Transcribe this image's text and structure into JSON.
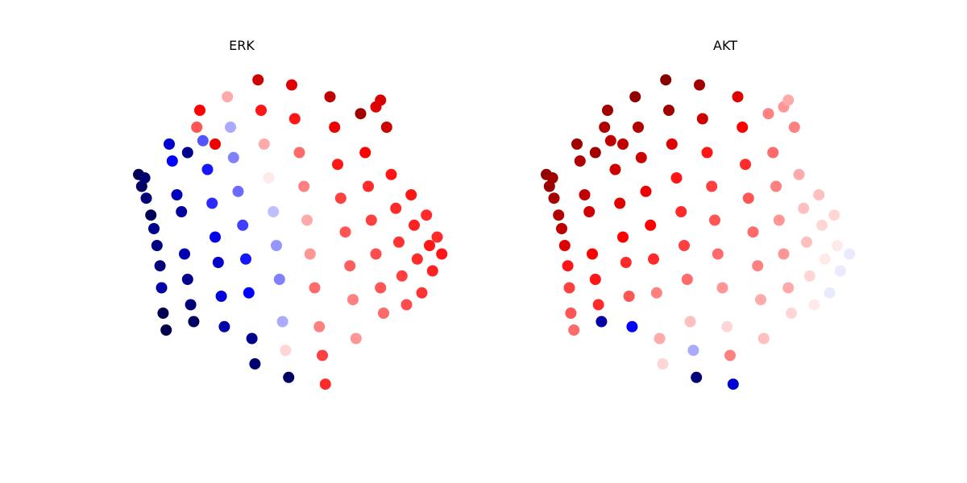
{
  "chart_data": [
    {
      "type": "scatter",
      "title": "ERK",
      "xlabel": "",
      "ylabel": "",
      "axes_visible": false,
      "grid": false,
      "colormap": "seismic",
      "value_range": [
        -1,
        1
      ],
      "colors": {
        "low": "#00004c",
        "mid": "#ffffff",
        "high": "#800000"
      },
      "points": [
        [
          -1.0,
          0.42,
          -0.98
        ],
        [
          -0.98,
          0.35,
          -0.95
        ],
        [
          -0.96,
          0.4,
          -0.92
        ],
        [
          -0.95,
          0.28,
          -0.9
        ],
        [
          -0.92,
          0.18,
          -0.97
        ],
        [
          -0.9,
          0.1,
          -0.85
        ],
        [
          -0.88,
          0.0,
          -0.88
        ],
        [
          -0.86,
          -0.12,
          -0.9
        ],
        [
          -0.85,
          -0.25,
          -0.8
        ],
        [
          -0.84,
          -0.4,
          -0.99
        ],
        [
          -0.82,
          -0.5,
          -1.0
        ],
        [
          -0.8,
          0.6,
          -0.7
        ],
        [
          -0.78,
          0.5,
          -0.6
        ],
        [
          -0.75,
          0.3,
          -0.75
        ],
        [
          -0.72,
          0.2,
          -0.82
        ],
        [
          -0.7,
          -0.05,
          -0.78
        ],
        [
          -0.68,
          -0.2,
          -0.86
        ],
        [
          -0.66,
          -0.35,
          -0.9
        ],
        [
          -0.64,
          -0.45,
          -0.95
        ],
        [
          -0.62,
          0.7,
          0.4
        ],
        [
          -0.6,
          0.8,
          0.6
        ],
        [
          -0.58,
          0.62,
          -0.4
        ],
        [
          -0.55,
          0.45,
          -0.55
        ],
        [
          -0.52,
          0.25,
          -0.5
        ],
        [
          -0.5,
          0.05,
          -0.65
        ],
        [
          -0.48,
          -0.1,
          -0.72
        ],
        [
          -0.46,
          -0.3,
          -0.68
        ],
        [
          -0.44,
          -0.48,
          -0.8
        ],
        [
          -0.42,
          0.88,
          0.2
        ],
        [
          -0.4,
          0.7,
          -0.2
        ],
        [
          -0.38,
          0.52,
          -0.3
        ],
        [
          -0.35,
          0.32,
          -0.35
        ],
        [
          -0.32,
          0.12,
          -0.45
        ],
        [
          -0.3,
          -0.08,
          -0.55
        ],
        [
          -0.28,
          -0.28,
          -0.6
        ],
        [
          -0.26,
          -0.55,
          -0.85
        ],
        [
          -0.24,
          -0.7,
          -0.92
        ],
        [
          -0.22,
          0.98,
          0.75
        ],
        [
          -0.2,
          0.8,
          0.55
        ],
        [
          -0.18,
          0.6,
          0.2
        ],
        [
          -0.15,
          0.4,
          0.05
        ],
        [
          -0.12,
          0.2,
          -0.15
        ],
        [
          -0.1,
          0.0,
          -0.25
        ],
        [
          -0.08,
          -0.2,
          -0.3
        ],
        [
          -0.06,
          -0.45,
          -0.2
        ],
        [
          -0.04,
          -0.62,
          0.1
        ],
        [
          -0.02,
          -0.78,
          -0.95
        ],
        [
          0.0,
          0.95,
          0.7
        ],
        [
          0.02,
          0.75,
          0.55
        ],
        [
          0.05,
          0.55,
          0.35
        ],
        [
          0.08,
          0.35,
          0.3
        ],
        [
          0.1,
          0.15,
          0.2
        ],
        [
          0.12,
          -0.05,
          0.25
        ],
        [
          0.15,
          -0.25,
          0.35
        ],
        [
          0.18,
          -0.48,
          0.3
        ],
        [
          0.2,
          -0.65,
          0.45
        ],
        [
          0.22,
          -0.82,
          0.5
        ],
        [
          0.25,
          0.88,
          0.8
        ],
        [
          0.28,
          0.7,
          0.65
        ],
        [
          0.3,
          0.48,
          0.55
        ],
        [
          0.32,
          0.28,
          0.45
        ],
        [
          0.35,
          0.08,
          0.4
        ],
        [
          0.38,
          -0.12,
          0.38
        ],
        [
          0.4,
          -0.32,
          0.3
        ],
        [
          0.42,
          -0.55,
          0.25
        ],
        [
          0.45,
          0.78,
          0.9
        ],
        [
          0.48,
          0.55,
          0.6
        ],
        [
          0.5,
          0.35,
          0.5
        ],
        [
          0.52,
          0.15,
          0.45
        ],
        [
          0.55,
          -0.05,
          0.42
        ],
        [
          0.58,
          -0.25,
          0.4
        ],
        [
          0.6,
          -0.4,
          0.35
        ],
        [
          0.62,
          0.7,
          0.75
        ],
        [
          0.65,
          0.42,
          0.55
        ],
        [
          0.68,
          0.22,
          0.5
        ],
        [
          0.7,
          0.02,
          0.48
        ],
        [
          0.72,
          -0.18,
          0.45
        ],
        [
          0.75,
          -0.35,
          0.42
        ],
        [
          0.78,
          0.3,
          0.55
        ],
        [
          0.8,
          0.12,
          0.52
        ],
        [
          0.82,
          -0.08,
          0.5
        ],
        [
          0.85,
          -0.28,
          0.48
        ],
        [
          0.88,
          0.18,
          0.5
        ],
        [
          0.9,
          0.0,
          0.55
        ],
        [
          0.92,
          -0.15,
          0.52
        ],
        [
          0.95,
          0.05,
          0.5
        ],
        [
          0.98,
          -0.05,
          0.55
        ],
        [
          0.55,
          0.82,
          0.7
        ],
        [
          0.58,
          0.86,
          0.72
        ],
        [
          -0.68,
          0.55,
          -0.85
        ],
        [
          -0.5,
          0.6,
          0.65
        ]
      ]
    },
    {
      "type": "scatter",
      "title": "AKT",
      "xlabel": "",
      "ylabel": "",
      "axes_visible": false,
      "grid": false,
      "colormap": "seismic",
      "value_range": [
        -1,
        1
      ],
      "colors": {
        "low": "#00004c",
        "mid": "#ffffff",
        "high": "#800000"
      },
      "points": [
        [
          -1.0,
          0.42,
          0.95
        ],
        [
          -0.98,
          0.35,
          0.92
        ],
        [
          -0.96,
          0.4,
          0.9
        ],
        [
          -0.95,
          0.28,
          0.88
        ],
        [
          -0.92,
          0.18,
          0.85
        ],
        [
          -0.9,
          0.1,
          0.8
        ],
        [
          -0.88,
          0.0,
          0.7
        ],
        [
          -0.86,
          -0.12,
          0.55
        ],
        [
          -0.85,
          -0.25,
          0.45
        ],
        [
          -0.84,
          -0.4,
          0.4
        ],
        [
          -0.82,
          -0.5,
          0.35
        ],
        [
          -0.8,
          0.6,
          0.9
        ],
        [
          -0.78,
          0.5,
          0.85
        ],
        [
          -0.75,
          0.3,
          0.8
        ],
        [
          -0.72,
          0.2,
          0.75
        ],
        [
          -0.7,
          -0.05,
          0.6
        ],
        [
          -0.68,
          -0.2,
          0.55
        ],
        [
          -0.66,
          -0.35,
          0.5
        ],
        [
          -0.64,
          -0.45,
          -0.8
        ],
        [
          -0.62,
          0.7,
          0.85
        ],
        [
          -0.6,
          0.8,
          0.9
        ],
        [
          -0.58,
          0.62,
          0.8
        ],
        [
          -0.55,
          0.45,
          0.75
        ],
        [
          -0.52,
          0.25,
          0.7
        ],
        [
          -0.5,
          0.05,
          0.6
        ],
        [
          -0.48,
          -0.1,
          0.5
        ],
        [
          -0.46,
          -0.3,
          0.4
        ],
        [
          -0.44,
          -0.48,
          -0.6
        ],
        [
          -0.42,
          0.88,
          0.95
        ],
        [
          -0.4,
          0.7,
          0.85
        ],
        [
          -0.38,
          0.52,
          0.75
        ],
        [
          -0.35,
          0.32,
          0.65
        ],
        [
          -0.32,
          0.12,
          0.6
        ],
        [
          -0.3,
          -0.08,
          0.5
        ],
        [
          -0.28,
          -0.28,
          0.3
        ],
        [
          -0.26,
          -0.55,
          0.2
        ],
        [
          -0.24,
          -0.7,
          0.1
        ],
        [
          -0.22,
          0.98,
          0.98
        ],
        [
          -0.2,
          0.8,
          0.9
        ],
        [
          -0.18,
          0.6,
          0.7
        ],
        [
          -0.15,
          0.4,
          0.55
        ],
        [
          -0.12,
          0.2,
          0.5
        ],
        [
          -0.1,
          0.0,
          0.45
        ],
        [
          -0.08,
          -0.2,
          0.35
        ],
        [
          -0.06,
          -0.45,
          0.15
        ],
        [
          -0.04,
          -0.62,
          -0.2
        ],
        [
          -0.02,
          -0.78,
          -0.9
        ],
        [
          0.0,
          0.95,
          0.9
        ],
        [
          0.02,
          0.75,
          0.75
        ],
        [
          0.05,
          0.55,
          0.55
        ],
        [
          0.08,
          0.35,
          0.45
        ],
        [
          0.1,
          0.15,
          0.4
        ],
        [
          0.12,
          -0.05,
          0.35
        ],
        [
          0.15,
          -0.25,
          0.25
        ],
        [
          0.18,
          -0.48,
          0.1
        ],
        [
          0.2,
          -0.65,
          0.3
        ],
        [
          0.22,
          -0.82,
          -0.7
        ],
        [
          0.25,
          0.88,
          0.7
        ],
        [
          0.28,
          0.7,
          0.6
        ],
        [
          0.3,
          0.48,
          0.5
        ],
        [
          0.32,
          0.28,
          0.4
        ],
        [
          0.35,
          0.08,
          0.35
        ],
        [
          0.38,
          -0.12,
          0.3
        ],
        [
          0.4,
          -0.32,
          0.2
        ],
        [
          0.42,
          -0.55,
          0.15
        ],
        [
          0.45,
          0.78,
          0.3
        ],
        [
          0.48,
          0.55,
          0.35
        ],
        [
          0.5,
          0.35,
          0.3
        ],
        [
          0.52,
          0.15,
          0.25
        ],
        [
          0.55,
          -0.05,
          0.25
        ],
        [
          0.58,
          -0.25,
          0.2
        ],
        [
          0.6,
          -0.4,
          0.1
        ],
        [
          0.62,
          0.7,
          0.3
        ],
        [
          0.65,
          0.42,
          0.2
        ],
        [
          0.68,
          0.22,
          0.15
        ],
        [
          0.7,
          0.02,
          0.15
        ],
        [
          0.72,
          -0.18,
          0.1
        ],
        [
          0.75,
          -0.35,
          0.05
        ],
        [
          0.78,
          0.3,
          0.15
        ],
        [
          0.8,
          0.12,
          0.1
        ],
        [
          0.82,
          -0.08,
          0.05
        ],
        [
          0.85,
          -0.28,
          -0.05
        ],
        [
          0.88,
          0.18,
          0.1
        ],
        [
          0.9,
          0.0,
          0.05
        ],
        [
          0.92,
          -0.15,
          -0.05
        ],
        [
          0.95,
          0.05,
          0.0
        ],
        [
          0.98,
          -0.05,
          -0.05
        ],
        [
          0.55,
          0.82,
          0.25
        ],
        [
          0.58,
          0.86,
          0.2
        ],
        [
          -0.68,
          0.55,
          0.9
        ],
        [
          -0.5,
          0.6,
          0.8
        ]
      ]
    }
  ]
}
